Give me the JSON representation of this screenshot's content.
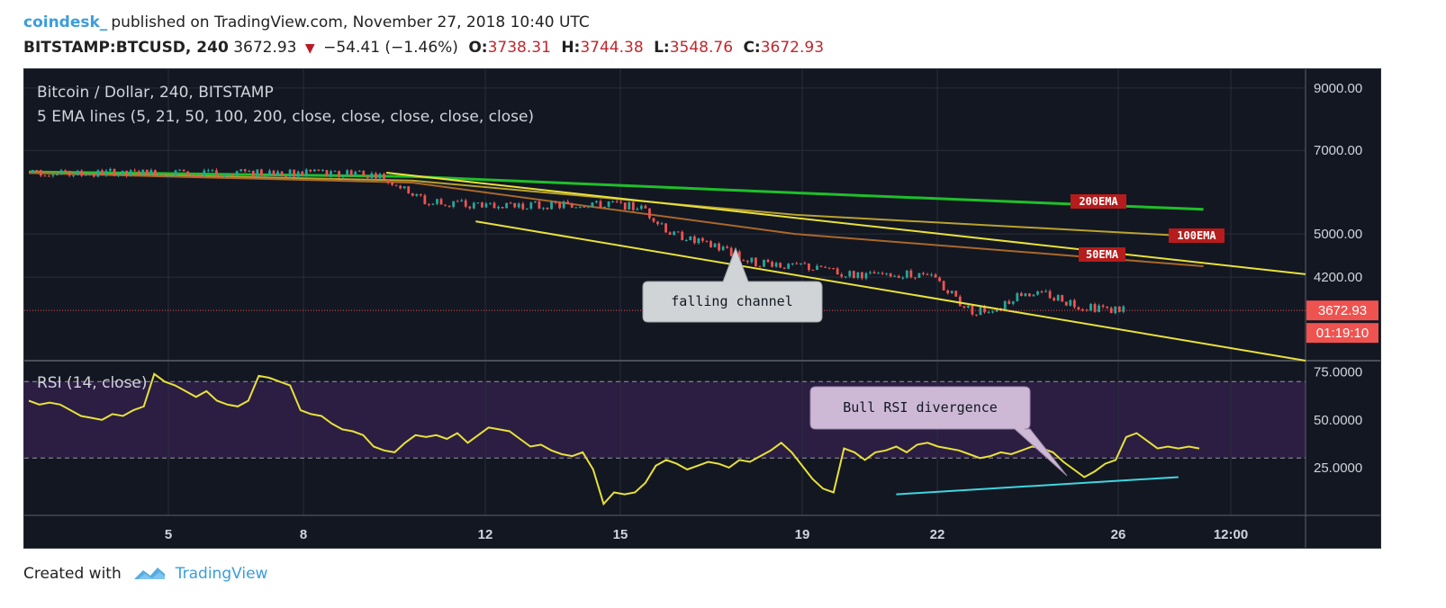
{
  "header": {
    "author": "coindesk_",
    "published": "published on TradingView.com, November 27, 2018 10:40 UTC",
    "symbol": "BITSTAMP:BTCUSD, 240",
    "last": "3672.93",
    "change": "−54.41 (−1.46%)",
    "o_label": "O:",
    "o": "3738.31",
    "h_label": "H:",
    "h": "3744.38",
    "l_label": "L:",
    "l": "3548.76",
    "c_label": "C:",
    "c": "3672.93"
  },
  "legend": {
    "title": "Bitcoin / Dollar, 240, BITSTAMP",
    "indicator": "5 EMA lines (5, 21, 50, 100, 200, close, close, close, close, close)",
    "rsi": "RSI (14, close)"
  },
  "footer": {
    "created": "Created with",
    "brand": "TradingView"
  },
  "colors": {
    "background": "#131722",
    "up": "#26a69a",
    "down": "#ef5350",
    "ema200": "#1fbf2a",
    "ema100": "#b9a12f",
    "ema50": "#a9682a",
    "channel": "#e8e13a",
    "rsi": "#e8e13a",
    "rsi_band": "#2b1e42",
    "divergence": "#3fd6e0",
    "price_tag": "#ef5350"
  },
  "chart_data": [
    {
      "type": "candlestick",
      "title": "Bitcoin / Dollar, 240, BITSTAMP",
      "x_ticks": [
        "5",
        "8",
        "12",
        "15",
        "19",
        "22",
        "26",
        "12:00"
      ],
      "x_range": [
        "Nov 1, 2018",
        "Nov 28, 2018"
      ],
      "y_scale": "log",
      "y_ticks": [
        "9000.00",
        "7000.00",
        "5000.00",
        "4200.00"
      ],
      "ylim": [
        3000,
        9500
      ],
      "last_price_label": "3672.93",
      "countdown_label": "01:19:10",
      "price_path": [
        [
          0,
          6400
        ],
        [
          16,
          6390
        ],
        [
          22,
          6380
        ],
        [
          26,
          6370
        ],
        [
          28,
          6250
        ],
        [
          31,
          5700
        ],
        [
          33,
          5650
        ],
        [
          35,
          5620
        ],
        [
          40,
          5610
        ],
        [
          46,
          5630
        ],
        [
          48,
          5560
        ],
        [
          50,
          5050
        ],
        [
          54,
          4720
        ],
        [
          57,
          4450
        ],
        [
          59,
          4400
        ],
        [
          61,
          4380
        ],
        [
          63,
          4290
        ],
        [
          65,
          4220
        ],
        [
          67,
          4230
        ],
        [
          69,
          4270
        ],
        [
          71,
          4170
        ],
        [
          73,
          3780
        ],
        [
          74,
          3660
        ],
        [
          76,
          3720
        ],
        [
          78,
          3960
        ],
        [
          80,
          3910
        ],
        [
          82,
          3740
        ],
        [
          84,
          3690
        ],
        [
          86,
          3672.93
        ]
      ],
      "ema_lines": [
        {
          "name": "200EMA",
          "values": [
            [
              0,
              6420
            ],
            [
              30,
              6300
            ],
            [
              60,
              5900
            ],
            [
              92,
              5520
            ]
          ]
        },
        {
          "name": "100EMA",
          "values": [
            [
              0,
              6400
            ],
            [
              30,
              6200
            ],
            [
              60,
              5400
            ],
            [
              92,
              4940
            ]
          ]
        },
        {
          "name": "50EMA",
          "values": [
            [
              0,
              6390
            ],
            [
              30,
              6150
            ],
            [
              60,
              5000
            ],
            [
              92,
              4390
            ]
          ]
        }
      ],
      "trendlines": [
        {
          "from": [
            28,
            6400
          ],
          "to": [
            100,
            4250
          ]
        },
        {
          "from": [
            35,
            5260
          ],
          "to": [
            100,
            3000
          ]
        }
      ],
      "annotations": [
        "falling channel",
        "200EMA",
        "100EMA",
        "50EMA"
      ]
    },
    {
      "type": "line",
      "title": "RSI (14, close)",
      "y_ticks": [
        "75.0000",
        "50.0000",
        "25.0000"
      ],
      "ylim": [
        0,
        80
      ],
      "bands": [
        30,
        70
      ],
      "rsi_values": [
        60,
        58,
        59,
        58,
        55,
        52,
        51,
        50,
        53,
        52,
        55,
        57,
        74,
        70,
        68,
        65,
        62,
        65,
        60,
        58,
        57,
        60,
        73,
        72,
        70,
        68,
        55,
        53,
        52,
        48,
        45,
        44,
        42,
        36,
        34,
        33,
        38,
        42,
        41,
        42,
        40,
        43,
        38,
        42,
        46,
        45,
        44,
        40,
        36,
        37,
        34,
        32,
        31,
        33,
        24,
        6,
        12,
        11,
        12,
        17,
        26,
        29,
        27,
        24,
        26,
        28,
        27,
        25,
        29,
        28,
        31,
        34,
        38,
        33,
        26,
        19,
        14,
        12,
        35,
        33,
        29,
        33,
        34,
        36,
        33,
        37,
        38,
        36,
        35,
        34,
        32,
        30,
        31,
        33,
        32,
        34,
        36,
        35,
        33,
        28,
        24,
        20,
        23,
        27,
        29,
        41,
        43,
        39,
        35,
        36,
        35,
        36,
        35
      ],
      "divergence_line": {
        "from": [
          83,
          11
        ],
        "to": [
          110,
          20
        ]
      },
      "annotations": [
        "Bull RSI divergence"
      ]
    }
  ]
}
